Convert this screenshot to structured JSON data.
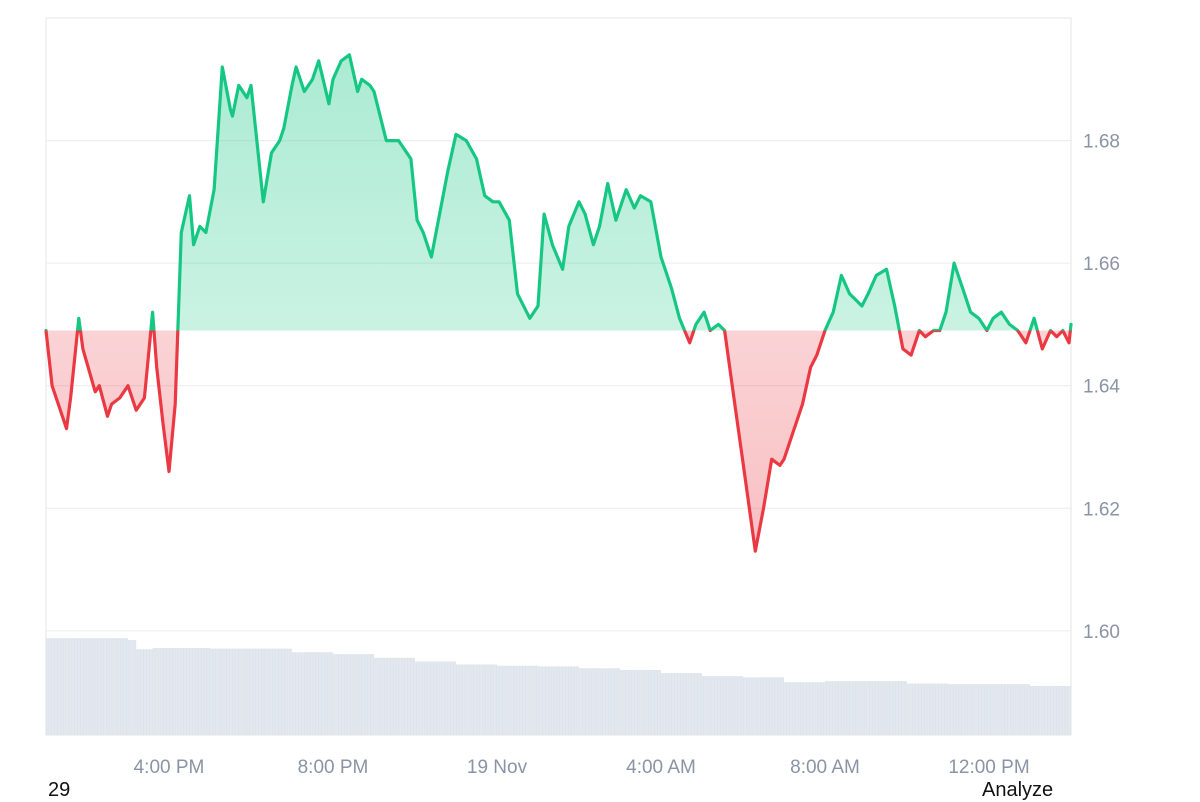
{
  "footer": {
    "left_text": "29",
    "right_button": "Analyze"
  },
  "colors": {
    "up_line": "#16c784",
    "down_line": "#ea3943",
    "up_fill": "#16c784",
    "down_fill": "#ea3943",
    "grid": "#ececec",
    "volume": "#e3e8ee",
    "tick_text": "#8a94a6"
  },
  "chart_data": {
    "type": "area",
    "baseline": 1.649,
    "ylim": [
      1.583,
      1.7
    ],
    "yticks": [
      {
        "value": 1.68,
        "label": "1.68"
      },
      {
        "value": 1.66,
        "label": "1.66"
      },
      {
        "value": 1.64,
        "label": "1.64"
      },
      {
        "value": 1.62,
        "label": "1.62"
      },
      {
        "value": 1.6,
        "label": "1.60"
      }
    ],
    "xlim": [
      0,
      25
    ],
    "xticks": [
      {
        "value": 3.0,
        "label": "4:00 PM"
      },
      {
        "value": 7.0,
        "label": "8:00 PM"
      },
      {
        "value": 11.0,
        "label": "19 Nov"
      },
      {
        "value": 15.0,
        "label": "4:00 AM"
      },
      {
        "value": 19.0,
        "label": "8:00 AM"
      },
      {
        "value": 23.0,
        "label": "12:00 PM"
      }
    ],
    "series": [
      {
        "x": [
          0,
          0.15,
          0.3,
          0.5,
          0.6,
          0.8,
          0.9,
          1.2,
          1.3,
          1.5,
          1.6,
          1.8,
          2.0,
          2.2,
          2.4,
          2.6,
          2.7,
          2.85,
          3.0,
          3.15,
          3.3,
          3.5,
          3.6,
          3.75,
          3.9,
          4.1,
          4.3,
          4.5,
          4.55,
          4.7,
          4.9,
          5.0,
          5.3,
          5.5,
          5.7,
          5.8,
          6.0,
          6.1,
          6.3,
          6.5,
          6.65,
          6.9,
          7.0,
          7.2,
          7.4,
          7.6,
          7.7,
          7.9,
          8.0,
          8.3,
          8.6,
          8.9,
          9.05,
          9.2,
          9.4,
          9.6,
          9.8,
          10.0,
          10.25,
          10.5,
          10.7,
          10.9,
          11.05,
          11.3,
          11.5,
          11.8,
          12.0,
          12.15,
          12.35,
          12.6,
          12.75,
          13.0,
          13.15,
          13.35,
          13.5,
          13.7,
          13.9,
          14.15,
          14.35,
          14.5,
          14.75,
          15.0,
          15.25,
          15.45,
          15.7,
          15.85,
          16.05,
          16.2,
          16.4,
          16.55,
          16.8,
          17.05,
          17.3,
          17.5,
          17.7,
          17.9,
          18.0,
          18.2,
          18.45,
          18.65,
          18.8,
          19.0,
          19.2,
          19.4,
          19.6,
          19.75,
          19.9,
          20.05,
          20.25,
          20.5,
          20.7,
          20.9,
          21.1,
          21.3,
          21.45,
          21.65,
          21.8,
          21.95,
          22.15,
          22.35,
          22.55,
          22.75,
          22.95,
          23.1,
          23.3,
          23.5,
          23.7,
          23.9,
          24.1,
          24.3,
          24.5,
          24.65,
          24.8,
          24.95,
          25.0
        ],
        "y": [
          1.649,
          1.64,
          1.637,
          1.633,
          1.638,
          1.651,
          1.646,
          1.639,
          1.64,
          1.635,
          1.637,
          1.638,
          1.64,
          1.636,
          1.638,
          1.652,
          1.643,
          1.634,
          1.626,
          1.637,
          1.665,
          1.671,
          1.663,
          1.666,
          1.665,
          1.672,
          1.692,
          1.685,
          1.684,
          1.689,
          1.687,
          1.689,
          1.67,
          1.678,
          1.68,
          1.682,
          1.689,
          1.692,
          1.688,
          1.69,
          1.693,
          1.686,
          1.69,
          1.693,
          1.694,
          1.688,
          1.69,
          1.689,
          1.688,
          1.68,
          1.68,
          1.677,
          1.667,
          1.665,
          1.661,
          1.668,
          1.675,
          1.681,
          1.68,
          1.677,
          1.671,
          1.67,
          1.67,
          1.667,
          1.655,
          1.651,
          1.653,
          1.668,
          1.663,
          1.659,
          1.666,
          1.67,
          1.668,
          1.663,
          1.666,
          1.673,
          1.667,
          1.672,
          1.669,
          1.671,
          1.67,
          1.661,
          1.656,
          1.651,
          1.647,
          1.65,
          1.652,
          1.649,
          1.65,
          1.649,
          1.637,
          1.625,
          1.613,
          1.62,
          1.628,
          1.627,
          1.628,
          1.632,
          1.637,
          1.643,
          1.645,
          1.649,
          1.652,
          1.658,
          1.655,
          1.654,
          1.653,
          1.655,
          1.658,
          1.659,
          1.653,
          1.646,
          1.645,
          1.649,
          1.648,
          1.649,
          1.649,
          1.652,
          1.66,
          1.656,
          1.652,
          1.651,
          1.649,
          1.651,
          1.652,
          1.65,
          1.649,
          1.647,
          1.651,
          1.646,
          1.649,
          1.648,
          1.649,
          1.647,
          1.65
        ]
      }
    ],
    "volume": {
      "x": [
        0,
        1.0,
        2.0,
        2.2,
        2.6,
        3.0,
        4.0,
        5.0,
        6.0,
        7.0,
        8.0,
        9.0,
        10.0,
        11.0,
        12.0,
        13.0,
        14.0,
        15.0,
        16.0,
        17.0,
        18.0,
        19.0,
        20.0,
        21.0,
        22.0,
        23.0,
        24.0,
        25.0
      ],
      "y": [
        1.5988,
        1.5988,
        1.5985,
        1.597,
        1.5972,
        1.5972,
        1.5971,
        1.5971,
        1.5965,
        1.5962,
        1.5956,
        1.595,
        1.5945,
        1.5943,
        1.5942,
        1.5939,
        1.5936,
        1.5931,
        1.5926,
        1.5924,
        1.5916,
        1.5918,
        1.5918,
        1.5914,
        1.5913,
        1.5913,
        1.591,
        1.591
      ]
    }
  }
}
